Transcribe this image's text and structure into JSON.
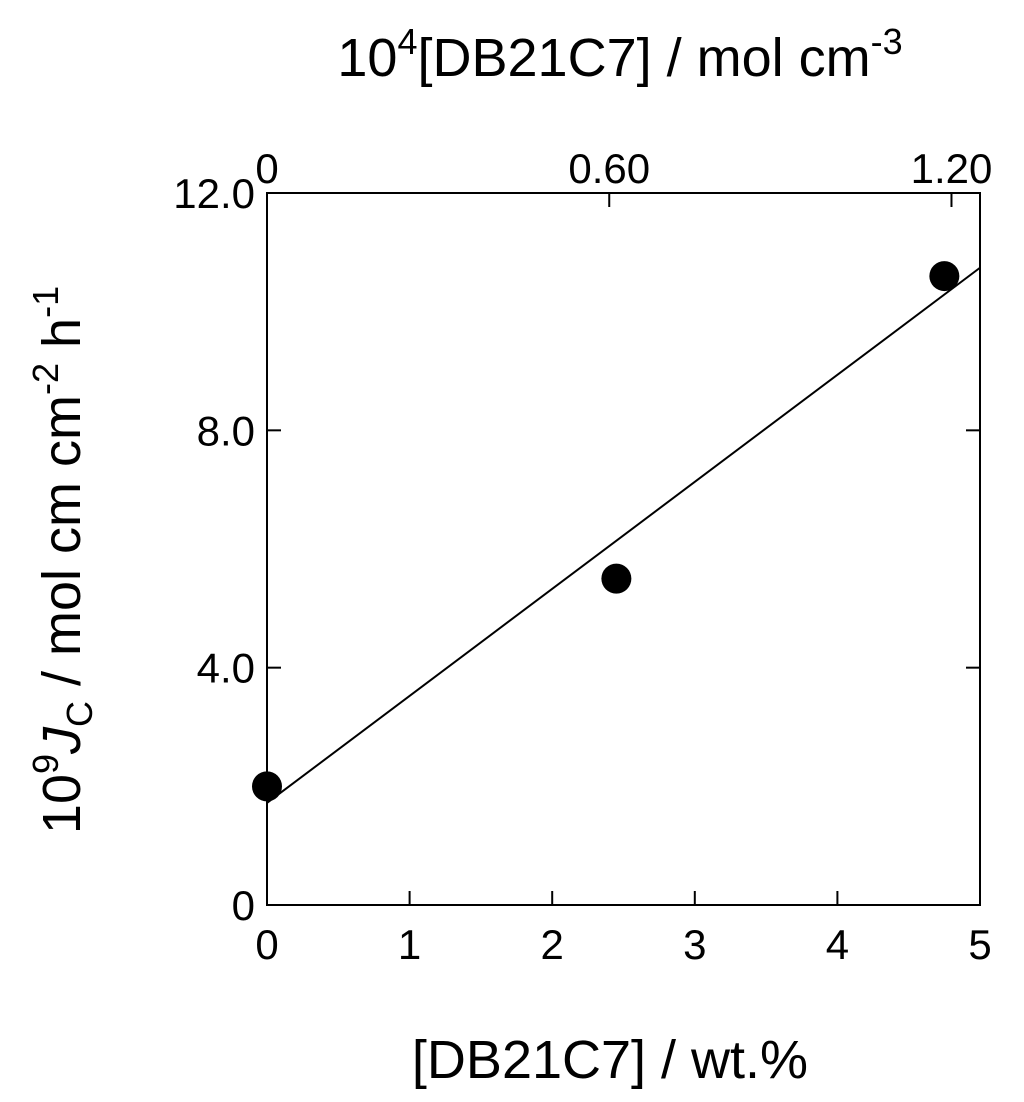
{
  "chart_data": {
    "type": "scatter",
    "x_label": "[DB21C7] / wt.%",
    "x2_label": [
      "10",
      "4",
      "[DB21C7] / mol cm",
      "-3"
    ],
    "y_label": [
      "10",
      "9",
      "J",
      "C",
      " / mol cm cm",
      "-2",
      " h",
      "-1"
    ],
    "xlim": [
      0,
      5
    ],
    "xticks": [
      0,
      1,
      2,
      3,
      4,
      5
    ],
    "x2lim": [
      0,
      1.25
    ],
    "x2ticks": [
      0,
      {
        "value": 0.6,
        "label": "0.60"
      },
      {
        "value": 1.2,
        "label": "1.20"
      }
    ],
    "ylim": [
      0,
      12
    ],
    "yticks": [
      0,
      {
        "value": 4,
        "label": "4.0"
      },
      {
        "value": 8,
        "label": "8.0"
      },
      {
        "value": 12,
        "label": "12.0"
      }
    ],
    "series": [
      {
        "color": "#000000",
        "x": [
          0,
          2.45,
          4.75
        ],
        "values": [
          2.0,
          5.5,
          10.6
        ]
      }
    ],
    "fit": {
      "color": "#000000",
      "x": [
        0,
        5
      ],
      "values": [
        1.72,
        10.74
      ]
    }
  }
}
